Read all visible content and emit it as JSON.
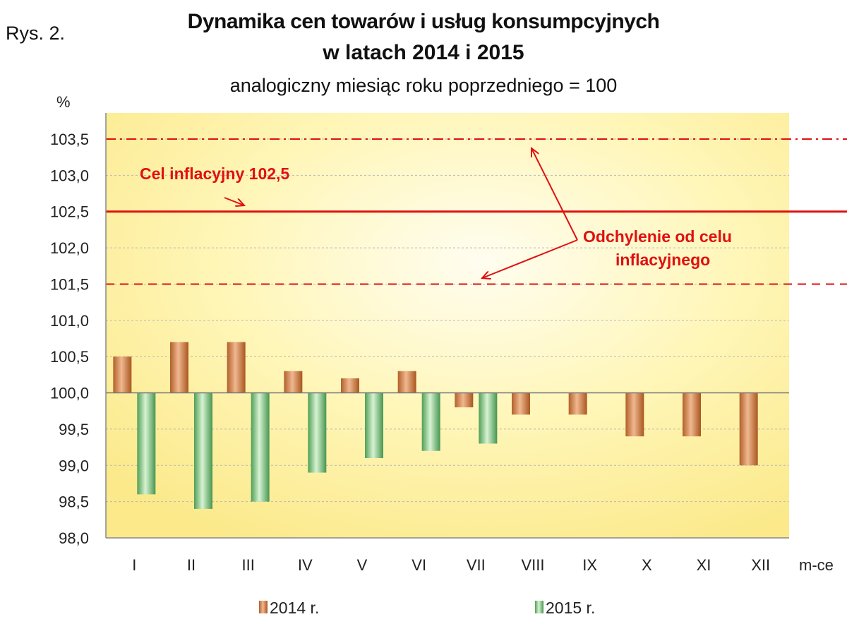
{
  "figure_label": "Rys. 2.",
  "chart_data": {
    "type": "bar",
    "title": "Dynamika cen towarów i usług konsumpcyjnych",
    "title_line2": "w latach 2014 i 2015",
    "subtitle": "analogiczny miesiąc roku poprzedniego = 100",
    "ylabel": "%",
    "xlabel": "m-ce",
    "ylim": [
      98.0,
      103.5
    ],
    "baseline": 100.0,
    "yticks": [
      "98,0",
      "98,5",
      "99,0",
      "99,5",
      "100,0",
      "100,5",
      "101,0",
      "101,5",
      "102,0",
      "102,5",
      "103,0",
      "103,5"
    ],
    "ytick_values": [
      98.0,
      98.5,
      99.0,
      99.5,
      100.0,
      100.5,
      101.0,
      101.5,
      102.0,
      102.5,
      103.0,
      103.5
    ],
    "categories": [
      "I",
      "II",
      "III",
      "IV",
      "V",
      "VI",
      "VII",
      "VIII",
      "IX",
      "X",
      "XI",
      "XII"
    ],
    "series": [
      {
        "name": "2014 r.",
        "color": "#c8773e",
        "values": [
          100.5,
          100.7,
          100.7,
          100.3,
          100.2,
          100.3,
          99.8,
          99.7,
          99.7,
          99.4,
          99.4,
          99.0
        ]
      },
      {
        "name": "2015 r.",
        "color": "#6cbf72",
        "values": [
          98.6,
          98.4,
          98.5,
          98.9,
          99.1,
          99.2,
          99.3,
          null,
          null,
          null,
          null,
          null
        ]
      }
    ],
    "reference_lines": [
      {
        "value": 102.5,
        "style": "solid",
        "color": "#e01010"
      },
      {
        "value": 103.5,
        "style": "dash-dot",
        "color": "#e01010"
      },
      {
        "value": 101.5,
        "style": "dashed",
        "color": "#e01010"
      }
    ],
    "annotations": {
      "target_label": "Cel inflacyjny 102,5",
      "deviation_label_line1": "Odchylenie od celu",
      "deviation_label_line2": "inflacyjnego"
    },
    "grid": true,
    "legend_position": "bottom"
  }
}
